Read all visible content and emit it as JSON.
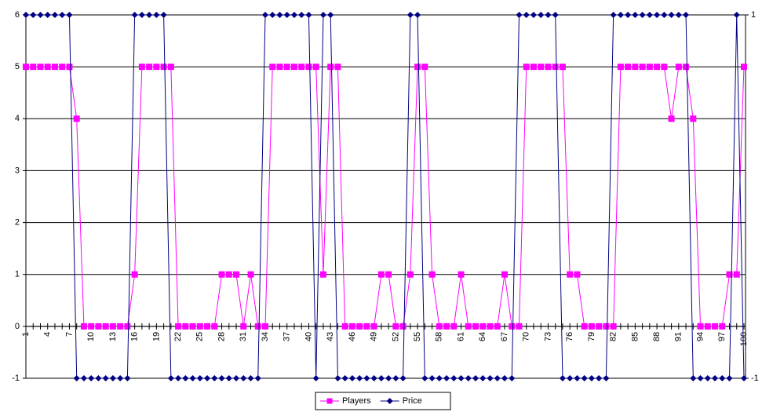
{
  "chart_data": {
    "type": "line",
    "x": [
      1,
      2,
      3,
      4,
      5,
      6,
      7,
      8,
      9,
      10,
      11,
      12,
      13,
      14,
      15,
      16,
      17,
      18,
      19,
      20,
      21,
      22,
      23,
      24,
      25,
      26,
      27,
      28,
      29,
      30,
      31,
      32,
      33,
      34,
      35,
      36,
      37,
      38,
      39,
      40,
      41,
      42,
      43,
      44,
      45,
      46,
      47,
      48,
      49,
      50,
      51,
      52,
      53,
      54,
      55,
      56,
      57,
      58,
      59,
      60,
      61,
      62,
      63,
      64,
      65,
      66,
      67,
      68,
      69,
      70,
      71,
      72,
      73,
      74,
      75,
      76,
      77,
      78,
      79,
      80,
      81,
      82,
      83,
      84,
      85,
      86,
      87,
      88,
      89,
      90,
      91,
      92,
      93,
      94,
      95,
      96,
      97,
      98,
      99,
      100
    ],
    "xlim": [
      1,
      100
    ],
    "xticks": [
      1,
      4,
      7,
      10,
      13,
      16,
      19,
      22,
      25,
      28,
      31,
      34,
      37,
      40,
      43,
      46,
      49,
      52,
      55,
      58,
      61,
      64,
      67,
      70,
      73,
      76,
      79,
      82,
      85,
      88,
      91,
      94,
      97,
      100
    ],
    "ylim": [
      -1,
      6
    ],
    "yticks": [
      -1,
      0,
      1,
      2,
      3,
      4,
      5,
      6
    ],
    "y2lim": [
      -1,
      1
    ],
    "y2ticks": [
      -1,
      1
    ],
    "grid": true,
    "legend": "bottom",
    "series": [
      {
        "name": "Players",
        "color": "#ff00ff",
        "marker": "square",
        "values": [
          5,
          5,
          5,
          5,
          5,
          5,
          5,
          4,
          0,
          0,
          0,
          0,
          0,
          0,
          0,
          1,
          5,
          5,
          5,
          5,
          5,
          0,
          0,
          0,
          0,
          0,
          0,
          1,
          1,
          1,
          0,
          1,
          0,
          0,
          5,
          5,
          5,
          5,
          5,
          5,
          5,
          1,
          5,
          5,
          0,
          0,
          0,
          0,
          0,
          1,
          1,
          0,
          0,
          1,
          5,
          5,
          1,
          0,
          0,
          0,
          1,
          0,
          0,
          0,
          0,
          0,
          1,
          0,
          0,
          5,
          5,
          5,
          5,
          5,
          5,
          1,
          1,
          0,
          0,
          0,
          0,
          0,
          5,
          5,
          5,
          5,
          5,
          5,
          5,
          4,
          5,
          5,
          4,
          0,
          0,
          0,
          0,
          1,
          1,
          5
        ]
      },
      {
        "name": "Price",
        "color": "#000080",
        "marker": "diamond",
        "axis": "y2",
        "values": [
          1,
          1,
          1,
          1,
          1,
          1,
          1,
          -1,
          -1,
          -1,
          -1,
          -1,
          -1,
          -1,
          -1,
          1,
          1,
          1,
          1,
          1,
          -1,
          -1,
          -1,
          -1,
          -1,
          -1,
          -1,
          -1,
          -1,
          -1,
          -1,
          -1,
          -1,
          1,
          1,
          1,
          1,
          1,
          1,
          1,
          -1,
          1,
          1,
          -1,
          -1,
          -1,
          -1,
          -1,
          -1,
          -1,
          -1,
          -1,
          -1,
          1,
          1,
          -1,
          -1,
          -1,
          -1,
          -1,
          -1,
          -1,
          -1,
          -1,
          -1,
          -1,
          -1,
          -1,
          1,
          1,
          1,
          1,
          1,
          1,
          -1,
          -1,
          -1,
          -1,
          -1,
          -1,
          -1,
          1,
          1,
          1,
          1,
          1,
          1,
          1,
          1,
          1,
          1,
          1,
          -1,
          -1,
          -1,
          -1,
          -1,
          -1,
          1,
          -1
        ]
      }
    ]
  }
}
